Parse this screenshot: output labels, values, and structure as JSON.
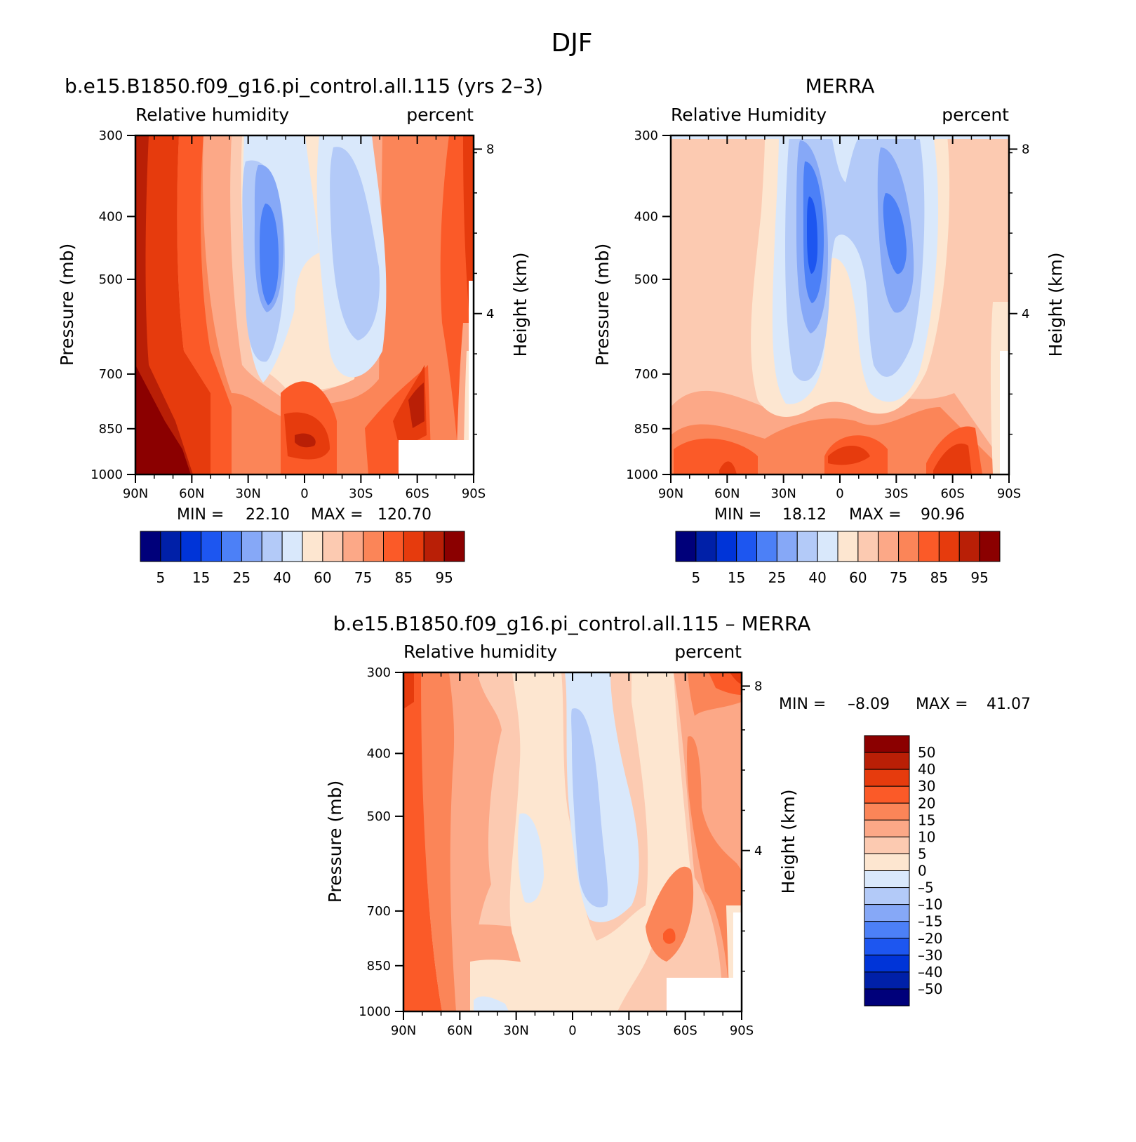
{
  "figure": {
    "title": "DJF"
  },
  "colors": {
    "abs_scale": [
      "#00007a",
      "#0020a8",
      "#0034d8",
      "#1d56f0",
      "#4c80f7",
      "#86a8f7",
      "#b3caf8",
      "#d9e8fb",
      "#fde6d0",
      "#fccab1",
      "#fca887",
      "#fb8558",
      "#fb5a28",
      "#e63b0d",
      "#b91f06",
      "#8b0000"
    ],
    "diff_scale": [
      "#00007a",
      "#0020a8",
      "#0034d8",
      "#1d56f0",
      "#4c80f7",
      "#86a8f7",
      "#b3caf8",
      "#d9e8fb",
      "#fde6d0",
      "#fccab1",
      "#fca887",
      "#fb8558",
      "#fb5a28",
      "#e63b0d",
      "#b91f06",
      "#8b0000"
    ]
  },
  "chart_data": [
    {
      "id": "model",
      "type": "heatmap",
      "title": "b.e15.B1850.f09_g16.pi_control.all.115 (yrs 2–3)",
      "left_string": "Relative humidity",
      "right_string": "percent",
      "ylabel": "Pressure (mb)",
      "ylabel_right": "Height (km)",
      "x_ticks": [
        "90N",
        "60N",
        "30N",
        "0",
        "30S",
        "60S",
        "90S"
      ],
      "x_values": [
        90,
        60,
        30,
        0,
        -30,
        -60,
        -90
      ],
      "y_ticks": [
        "300",
        "400",
        "500",
        "700",
        "850",
        "1000"
      ],
      "y_values": [
        300,
        400,
        500,
        700,
        850,
        1000
      ],
      "height_ticks": [
        "8",
        "4"
      ],
      "height_values": [
        8,
        4
      ],
      "min_label": "MIN =",
      "min_value": "22.10",
      "max_label": "MAX =",
      "max_value": "120.70",
      "colorbar_labels": [
        "5",
        "15",
        "25",
        "40",
        "60",
        "75",
        "85",
        "95"
      ],
      "levels": [
        5,
        10,
        15,
        20,
        25,
        30,
        40,
        50,
        60,
        65,
        75,
        80,
        85,
        90,
        95
      ]
    },
    {
      "id": "merra",
      "type": "heatmap",
      "title": "MERRA",
      "left_string": "Relative Humidity",
      "right_string": "percent",
      "ylabel": "Pressure (mb)",
      "ylabel_right": "Height (km)",
      "x_ticks": [
        "90N",
        "60N",
        "30N",
        "0",
        "30S",
        "60S",
        "90S"
      ],
      "x_values": [
        90,
        60,
        30,
        0,
        -30,
        -60,
        -90
      ],
      "y_ticks": [
        "300",
        "400",
        "500",
        "700",
        "850",
        "1000"
      ],
      "y_values": [
        300,
        400,
        500,
        700,
        850,
        1000
      ],
      "height_ticks": [
        "8",
        "4"
      ],
      "height_values": [
        8,
        4
      ],
      "min_label": "MIN =",
      "min_value": "18.12",
      "max_label": "MAX =",
      "max_value": "90.96",
      "colorbar_labels": [
        "5",
        "15",
        "25",
        "40",
        "60",
        "75",
        "85",
        "95"
      ],
      "levels": [
        5,
        10,
        15,
        20,
        25,
        30,
        40,
        50,
        60,
        65,
        75,
        80,
        85,
        90,
        95
      ]
    },
    {
      "id": "diff",
      "type": "heatmap",
      "title": "b.e15.B1850.f09_g16.pi_control.all.115 – MERRA",
      "left_string": "Relative humidity",
      "right_string": "percent",
      "ylabel": "Pressure (mb)",
      "ylabel_right": "Height (km)",
      "x_ticks": [
        "90N",
        "60N",
        "30N",
        "0",
        "30S",
        "60S",
        "90S"
      ],
      "x_values": [
        90,
        60,
        30,
        0,
        -30,
        -60,
        -90
      ],
      "y_ticks": [
        "300",
        "400",
        "500",
        "700",
        "850",
        "1000"
      ],
      "y_values": [
        300,
        400,
        500,
        700,
        850,
        1000
      ],
      "height_ticks": [
        "8",
        "4"
      ],
      "height_values": [
        8,
        4
      ],
      "min_label": "MIN =",
      "min_value": "–8.09",
      "max_label": "MAX =",
      "max_value": "41.07",
      "colorbar_labels": [
        "50",
        "40",
        "30",
        "20",
        "15",
        "10",
        "5",
        "0",
        "–5",
        "–10",
        "–15",
        "–20",
        "–30",
        "–40",
        "–50"
      ],
      "levels": [
        -50,
        -40,
        -30,
        -20,
        -15,
        -10,
        -5,
        0,
        5,
        10,
        15,
        20,
        30,
        40,
        50
      ]
    }
  ]
}
